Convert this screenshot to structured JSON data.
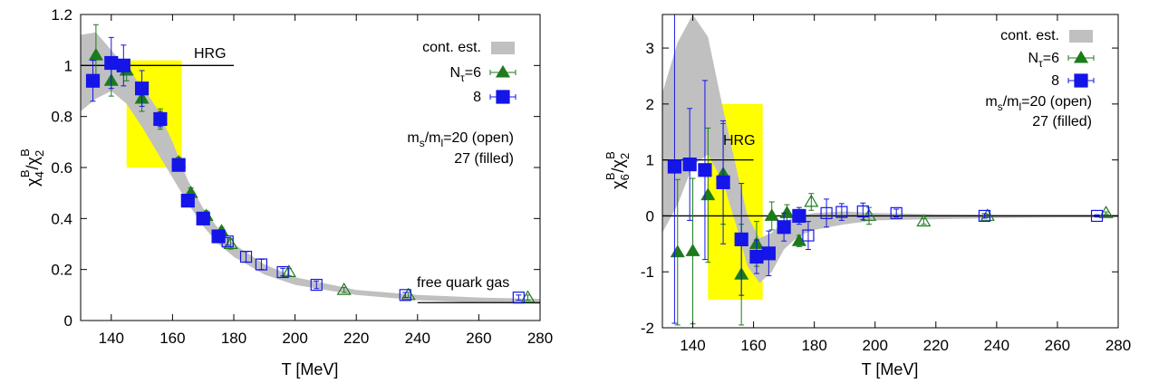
{
  "chart_data": [
    {
      "type": "scatter",
      "xlabel": "T [MeV]",
      "ylabel_main": "χ",
      "ylabel_sub": "4",
      "ylabel_sup": "B",
      "ylabel_den_main": "χ",
      "ylabel_den_sub": "2",
      "ylabel_den_sup": "B",
      "xlim": [
        130,
        280
      ],
      "ylim": [
        0,
        1.2
      ],
      "xticks": [
        140,
        160,
        180,
        200,
        220,
        240,
        260,
        280
      ],
      "xtick_labels": [
        "140",
        "160",
        "180",
        "200",
        "220",
        "240",
        "260",
        "280"
      ],
      "yticks": [
        0,
        0.2,
        0.4,
        0.6,
        0.8,
        1,
        1.2
      ],
      "ytick_labels": [
        "0",
        "0.2",
        "0.4",
        "0.6",
        "0.8",
        "1",
        "1.2"
      ],
      "legend": {
        "position": "top-right",
        "band_label": "cont. est.",
        "nt6_main": "N",
        "nt6_sub": "τ",
        "nt6_rest": "=6",
        "nt8_label": "8",
        "ms_main": "m",
        "ms_sub1": "s",
        "ms_slash": "/m",
        "ms_sub2": "l",
        "ms_rest": "=20 (open)",
        "filled_label": "27 (filled)"
      },
      "annotations": {
        "hrg": "HRG",
        "free": "free quark gas"
      },
      "hrg_line": {
        "x": [
          130,
          180
        ],
        "y": 1.0
      },
      "free_line": {
        "x": [
          240,
          280
        ],
        "y": 0.07
      },
      "yellow_box": {
        "x": [
          145,
          163
        ],
        "y": [
          0.6,
          1.02
        ]
      },
      "band": {
        "x": [
          130,
          135,
          140,
          145,
          150,
          155,
          160,
          165,
          170,
          175,
          180,
          190,
          200,
          220,
          240,
          260,
          280
        ],
        "upper": [
          1.12,
          1.13,
          1.06,
          0.99,
          0.92,
          0.83,
          0.7,
          0.55,
          0.44,
          0.36,
          0.3,
          0.22,
          0.17,
          0.12,
          0.1,
          0.09,
          0.085
        ],
        "lower": [
          0.82,
          0.87,
          0.9,
          0.85,
          0.76,
          0.66,
          0.56,
          0.46,
          0.37,
          0.3,
          0.25,
          0.18,
          0.14,
          0.1,
          0.08,
          0.07,
          0.065
        ]
      },
      "series": [
        {
          "kind": "nt6-filled",
          "points": [
            {
              "x": 135,
              "y": 1.04,
              "err": 0.12
            },
            {
              "x": 140,
              "y": 0.94,
              "err": 0.06
            },
            {
              "x": 145,
              "y": 0.98,
              "err": 0.04
            },
            {
              "x": 150,
              "y": 0.87,
              "err": 0.05
            },
            {
              "x": 156,
              "y": 0.79,
              "err": 0.04
            },
            {
              "x": 162,
              "y": 0.62,
              "err": 0.02
            },
            {
              "x": 166,
              "y": 0.5,
              "err": 0.02
            },
            {
              "x": 171,
              "y": 0.41,
              "err": 0.02
            },
            {
              "x": 176,
              "y": 0.35,
              "err": 0.015
            }
          ]
        },
        {
          "kind": "nt8-filled",
          "points": [
            {
              "x": 134,
              "y": 0.94,
              "err": 0.08
            },
            {
              "x": 140,
              "y": 1.01,
              "err": 0.1
            },
            {
              "x": 144,
              "y": 1.0,
              "err": 0.08
            },
            {
              "x": 150,
              "y": 0.91,
              "err": 0.07
            },
            {
              "x": 156,
              "y": 0.79,
              "err": 0.03
            },
            {
              "x": 162,
              "y": 0.61,
              "err": 0.015
            },
            {
              "x": 165,
              "y": 0.47,
              "err": 0.015
            },
            {
              "x": 170,
              "y": 0.4,
              "err": 0.015
            },
            {
              "x": 175,
              "y": 0.33,
              "err": 0.015
            }
          ]
        },
        {
          "kind": "nt6-open",
          "points": [
            {
              "x": 179,
              "y": 0.3,
              "err": 0.02
            },
            {
              "x": 198,
              "y": 0.19,
              "err": 0.015
            },
            {
              "x": 216,
              "y": 0.12,
              "err": 0.01
            },
            {
              "x": 237,
              "y": 0.1,
              "err": 0.01
            },
            {
              "x": 276,
              "y": 0.09,
              "err": 0.01
            }
          ]
        },
        {
          "kind": "nt8-open",
          "points": [
            {
              "x": 178,
              "y": 0.31,
              "err": 0.015
            },
            {
              "x": 184,
              "y": 0.25,
              "err": 0.02
            },
            {
              "x": 189,
              "y": 0.22,
              "err": 0.02
            },
            {
              "x": 196,
              "y": 0.19,
              "err": 0.015
            },
            {
              "x": 207,
              "y": 0.14,
              "err": 0.015
            },
            {
              "x": 236,
              "y": 0.1,
              "err": 0.01
            },
            {
              "x": 273,
              "y": 0.09,
              "err": 0.01
            }
          ]
        }
      ]
    },
    {
      "type": "scatter",
      "xlabel": "T [MeV]",
      "ylabel_main": "χ",
      "ylabel_sub": "6",
      "ylabel_sup": "B",
      "ylabel_den_main": "χ",
      "ylabel_den_sub": "2",
      "ylabel_den_sup": "B",
      "xlim": [
        130,
        280
      ],
      "ylim": [
        -2,
        3.6
      ],
      "xticks": [
        140,
        160,
        180,
        200,
        220,
        240,
        260,
        280
      ],
      "xtick_labels": [
        "140",
        "160",
        "180",
        "200",
        "220",
        "240",
        "260",
        "280"
      ],
      "yticks": [
        -2,
        -1,
        0,
        1,
        2,
        3
      ],
      "ytick_labels": [
        "-2",
        "-1",
        "0",
        "1",
        "2",
        "3"
      ],
      "legend": {
        "position": "top-right",
        "band_label": "cont. est.",
        "nt6_main": "N",
        "nt6_sub": "τ",
        "nt6_rest": "=6",
        "nt8_label": "8",
        "ms_main": "m",
        "ms_sub1": "s",
        "ms_slash": "/m",
        "ms_sub2": "l",
        "ms_rest": "=20 (open)",
        "filled_label": "27 (filled)"
      },
      "annotations": {
        "hrg": "HRG"
      },
      "hrg_line": {
        "x": [
          130,
          160
        ],
        "y": 1.0
      },
      "zero_line": {
        "x": [
          130,
          280
        ],
        "y": 0
      },
      "yellow_box": {
        "x": [
          145,
          163
        ],
        "y": [
          -1.5,
          2.0
        ]
      },
      "band": {
        "x": [
          130,
          135,
          140,
          145,
          150,
          155,
          158,
          162,
          166,
          170,
          175,
          180,
          190,
          200,
          220,
          240,
          260,
          280
        ],
        "upper": [
          2.2,
          3.1,
          3.6,
          3.2,
          1.9,
          0.7,
          0.0,
          -0.4,
          -0.3,
          -0.1,
          0.0,
          0.05,
          0.08,
          0.05,
          0.03,
          0.02,
          0.02,
          0.02
        ],
        "lower": [
          -0.3,
          0.2,
          0.9,
          1.1,
          0.6,
          -0.3,
          -0.9,
          -1.2,
          -1.0,
          -0.6,
          -0.35,
          -0.25,
          -0.15,
          -0.08,
          -0.06,
          -0.04,
          -0.03,
          -0.03
        ]
      },
      "series": [
        {
          "kind": "nt6-filled",
          "points": [
            {
              "x": 135,
              "y": -0.65,
              "err": 1.3
            },
            {
              "x": 140,
              "y": -0.63,
              "err": 1.3
            },
            {
              "x": 145,
              "y": 0.37,
              "err": 1.2
            },
            {
              "x": 150,
              "y": 0.75,
              "err": 0.9
            },
            {
              "x": 156,
              "y": -1.05,
              "err": 0.9
            },
            {
              "x": 161,
              "y": -0.5,
              "err": 0.4
            },
            {
              "x": 166,
              "y": 0.0,
              "err": 0.25
            },
            {
              "x": 171,
              "y": 0.05,
              "err": 0.15
            },
            {
              "x": 175,
              "y": -0.45,
              "err": 0.1
            }
          ]
        },
        {
          "kind": "nt8-filled",
          "points": [
            {
              "x": 134,
              "y": 0.88,
              "err": 2.8
            },
            {
              "x": 139,
              "y": 0.92,
              "err": 1.0
            },
            {
              "x": 144,
              "y": 0.82,
              "err": 1.6
            },
            {
              "x": 150,
              "y": 0.6,
              "err": 1.1
            },
            {
              "x": 156,
              "y": -0.42,
              "err": 1.0
            },
            {
              "x": 161,
              "y": -0.73,
              "err": 0.3
            },
            {
              "x": 165,
              "y": -0.67,
              "err": 0.4
            },
            {
              "x": 170,
              "y": -0.2,
              "err": 0.25
            },
            {
              "x": 175,
              "y": 0.0,
              "err": 0.15
            }
          ]
        },
        {
          "kind": "nt6-open",
          "points": [
            {
              "x": 179,
              "y": 0.25,
              "err": 0.15
            },
            {
              "x": 198,
              "y": 0.0,
              "err": 0.15
            },
            {
              "x": 216,
              "y": -0.1,
              "err": 0.05
            },
            {
              "x": 237,
              "y": 0.0,
              "err": 0.03
            },
            {
              "x": 276,
              "y": 0.05,
              "err": 0.02
            }
          ]
        },
        {
          "kind": "nt8-open",
          "points": [
            {
              "x": 178,
              "y": -0.35,
              "err": 0.25
            },
            {
              "x": 184,
              "y": 0.05,
              "err": 0.25
            },
            {
              "x": 189,
              "y": 0.07,
              "err": 0.15
            },
            {
              "x": 196,
              "y": 0.08,
              "err": 0.15
            },
            {
              "x": 207,
              "y": 0.05,
              "err": 0.07
            },
            {
              "x": 236,
              "y": 0.0,
              "err": 0.04
            },
            {
              "x": 273,
              "y": 0.0,
              "err": 0.02
            }
          ]
        }
      ]
    }
  ],
  "colors": {
    "band": "#c0c0c0",
    "yellow": "#ffff00",
    "green": "#1d7a1d",
    "blue": "#1515e8",
    "line": "#000000"
  }
}
